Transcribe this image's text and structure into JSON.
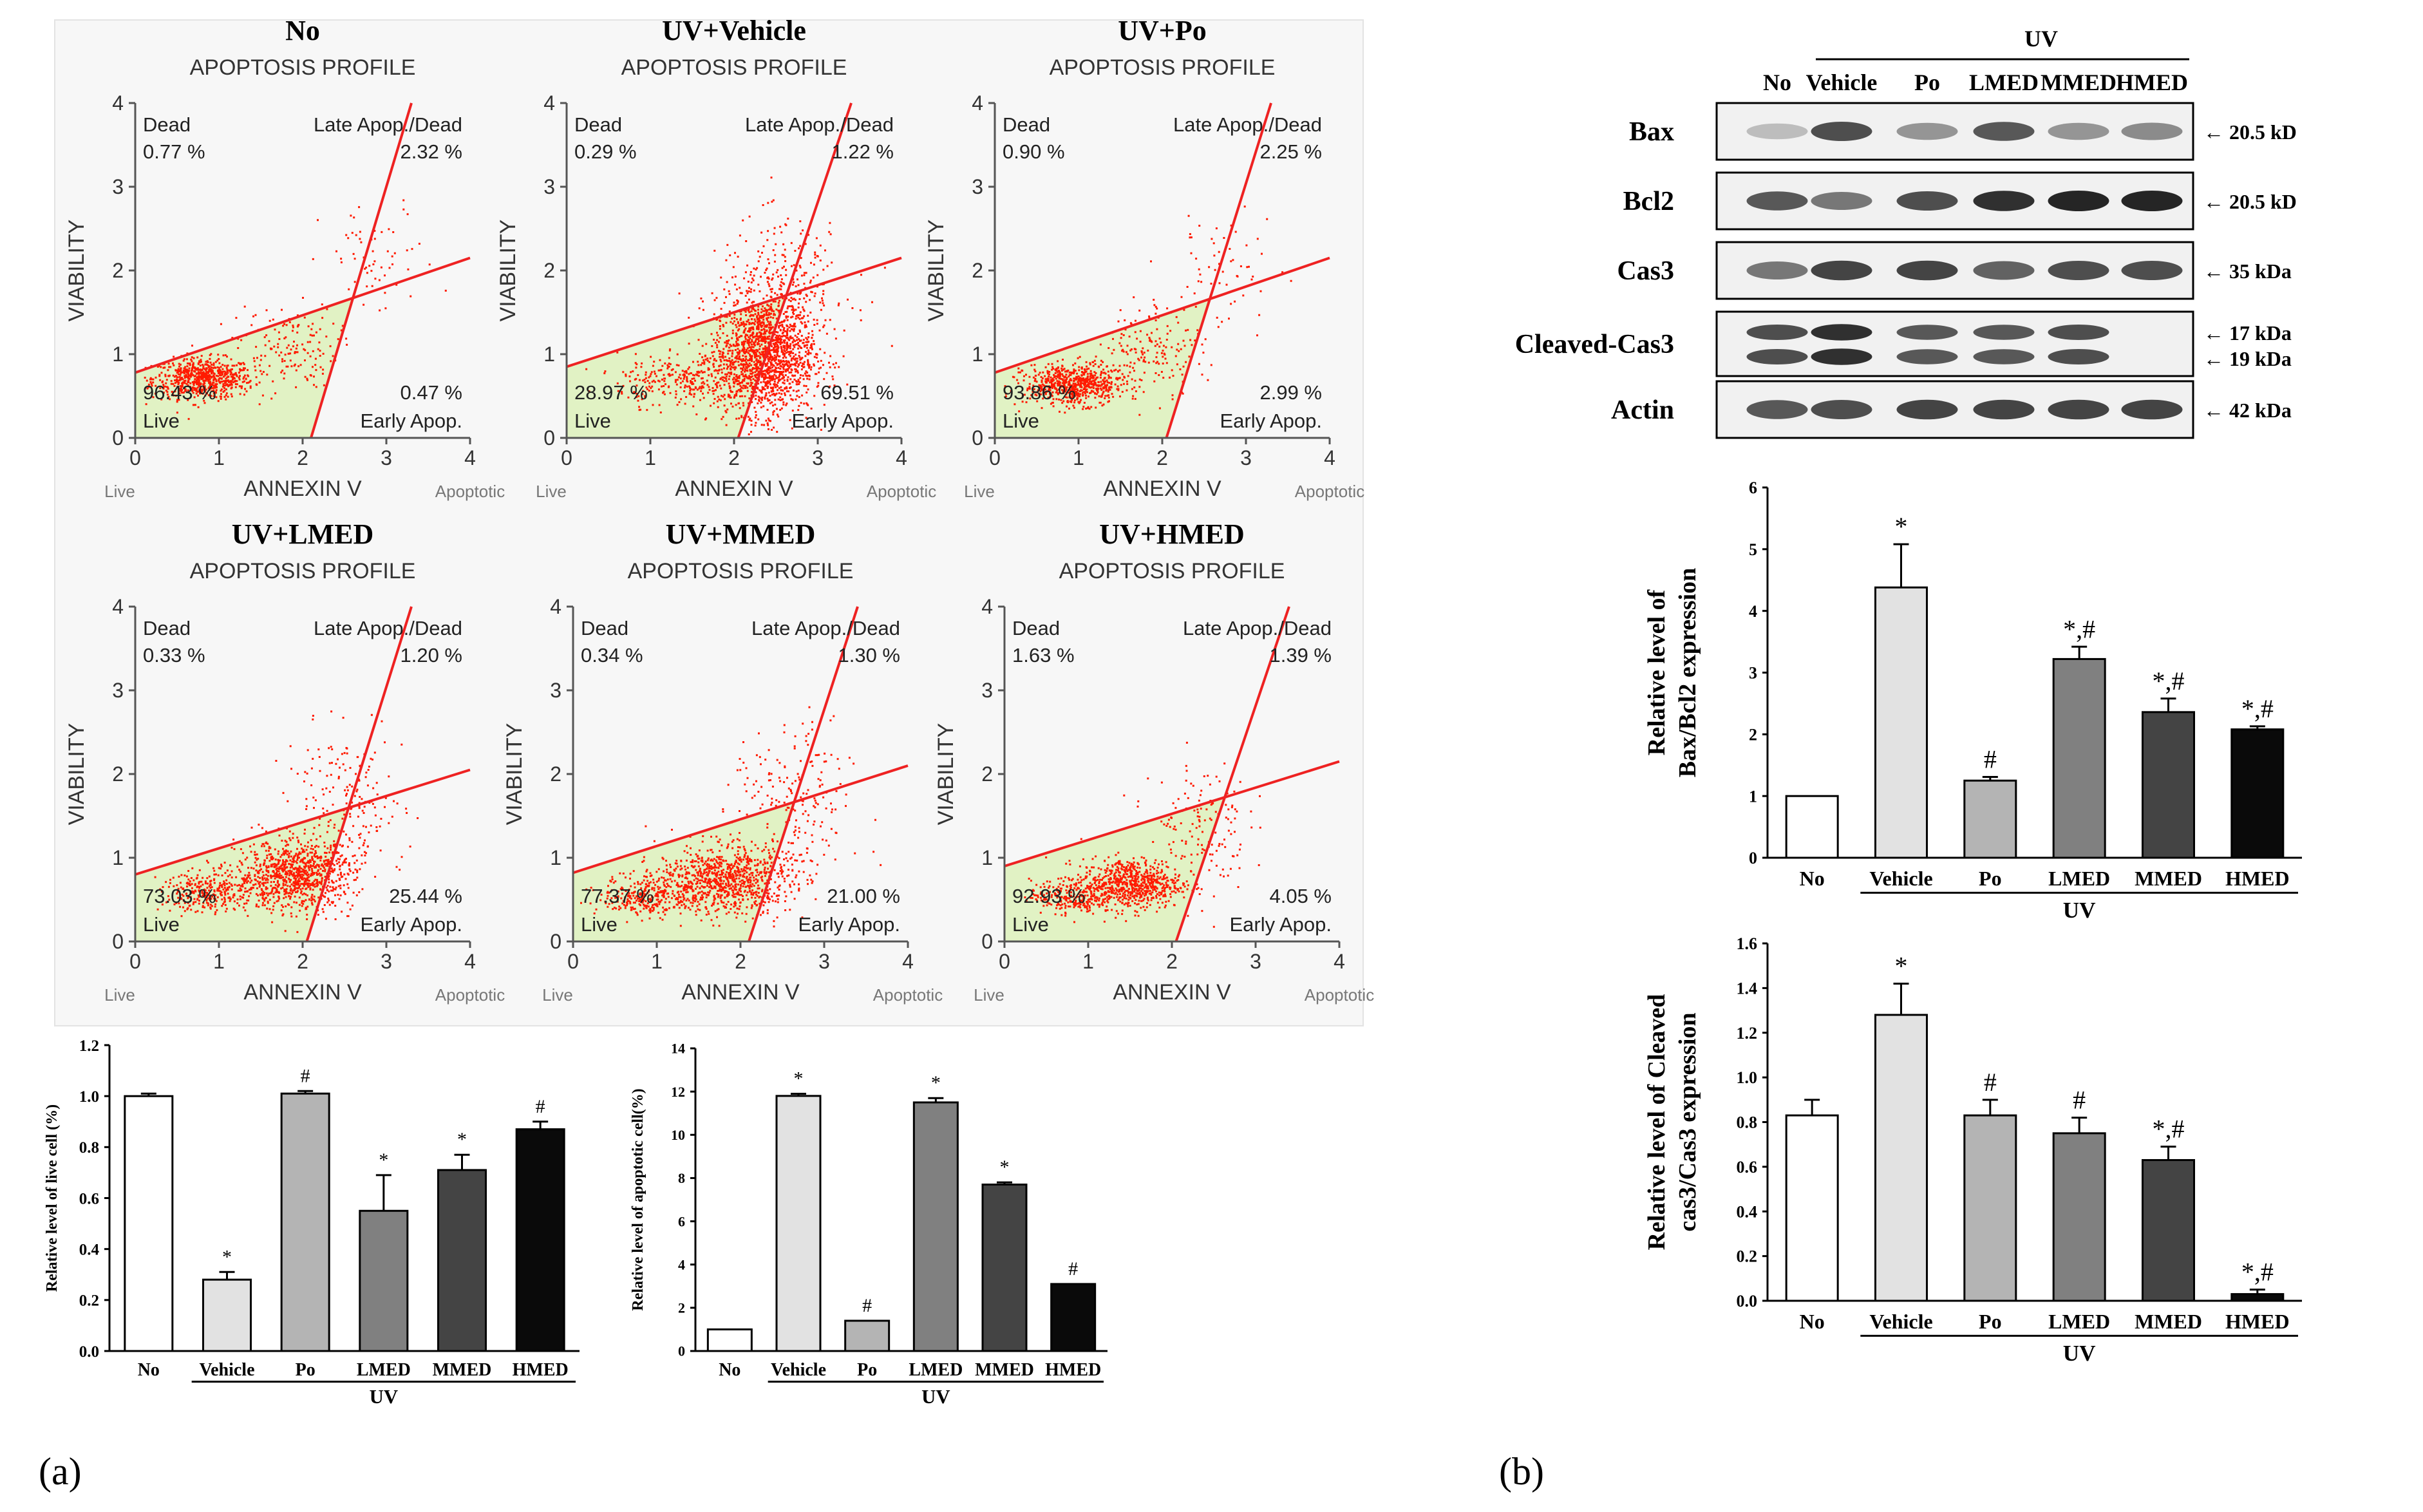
{
  "panel_labels": {
    "a": "(a)",
    "b": "(b)"
  },
  "flow": {
    "subtitle": "APOPTOSIS PROFILE",
    "x_label": "ANNEXIN V",
    "y_label": "VIABILITY",
    "live_tag": "Live",
    "apoptotic_tag": "Apoptotic",
    "q_dead": "Dead",
    "q_late": "Late Apop./Dead",
    "q_live": "Live",
    "q_early": "Early Apop.",
    "ticks": [
      "0",
      "1",
      "2",
      "3",
      "4"
    ],
    "colors": {
      "dots": "#ff1a00",
      "live_fill": "#e1f2c4",
      "gate": "#ee2222"
    },
    "plots": [
      {
        "title": "No",
        "dead": "0.77 %",
        "late": "2.32 %",
        "live": "96.43 %",
        "early": "0.47 %"
      },
      {
        "title": "UV+Vehicle",
        "dead": "0.29 %",
        "late": "1.22 %",
        "live": "28.97 %",
        "early": "69.51 %"
      },
      {
        "title": "UV+Po",
        "dead": "0.90 %",
        "late": "2.25 %",
        "live": "93.86 %",
        "early": "2.99 %"
      },
      {
        "title": "UV+LMED",
        "dead": "0.33 %",
        "late": "1.20 %",
        "live": "73.03 %",
        "early": "25.44 %"
      },
      {
        "title": "UV+MMED",
        "dead": "0.34 %",
        "late": "1.30 %",
        "live": "77.37 %",
        "early": "21.00 %"
      },
      {
        "title": "UV+HMED",
        "dead": "1.63 %",
        "late": "1.39 %",
        "live": "92.93 %",
        "early": "4.05 %"
      }
    ]
  },
  "western": {
    "uv_label": "UV",
    "lanes": [
      "No",
      "Vehicle",
      "Po",
      "LMED",
      "MMED",
      "HMED"
    ],
    "rows": [
      {
        "name": "Bax",
        "size": "20.5 kD"
      },
      {
        "name": "Bcl2",
        "size": "20.5 kD"
      },
      {
        "name": "Cas3",
        "size": "35 kDa"
      },
      {
        "name": "Cleaved-Cas3",
        "size": "17 kDa",
        "size2": "19 kDa"
      },
      {
        "name": "Actin",
        "size": "42 kDa"
      }
    ]
  },
  "chart_data": [
    {
      "id": "live",
      "type": "bar",
      "title": "",
      "ylabel": "Relative  level of live cell (%)",
      "xlabel": "UV",
      "categories": [
        "No",
        "Vehicle",
        "Po",
        "LMED",
        "MMED",
        "HMED"
      ],
      "values": [
        1.0,
        0.28,
        1.01,
        0.55,
        0.71,
        0.87
      ],
      "errors": [
        0.01,
        0.03,
        0.01,
        0.14,
        0.06,
        0.03
      ],
      "marks": [
        "",
        "*",
        "#",
        "*",
        "*",
        "#"
      ],
      "yticks": [
        "0.0",
        "0.2",
        "0.4",
        "0.6",
        "0.8",
        "1.0",
        "1.2"
      ],
      "ylim": [
        0,
        1.2
      ]
    },
    {
      "id": "apop",
      "type": "bar",
      "title": "",
      "ylabel": "Relative  level of apoptotic  cell(%)",
      "xlabel": "UV",
      "categories": [
        "No",
        "Vehicle",
        "Po",
        "LMED",
        "MMED",
        "HMED"
      ],
      "values": [
        1.0,
        11.8,
        1.4,
        11.5,
        7.7,
        3.1
      ],
      "errors": [
        0,
        0.1,
        0,
        0.2,
        0.1,
        0
      ],
      "marks": [
        "",
        "*",
        "#",
        "*",
        "*",
        "#"
      ],
      "yticks": [
        "0",
        "2",
        "4",
        "6",
        "8",
        "10",
        "12",
        "14"
      ],
      "ylim": [
        0,
        14
      ]
    },
    {
      "id": "baxbcl2",
      "type": "bar",
      "title": "",
      "ylabel": "Relative level of",
      "ylabel2": "Bax/Bcl2 expression",
      "xlabel": "UV",
      "categories": [
        "No",
        "Vehicle",
        "Po",
        "LMED",
        "MMED",
        "HMED"
      ],
      "values": [
        1.0,
        4.38,
        1.25,
        3.22,
        2.36,
        2.08
      ],
      "errors": [
        0,
        0.7,
        0.06,
        0.2,
        0.22,
        0.05
      ],
      "marks": [
        "",
        "*",
        "#",
        "*,#",
        "*,#",
        "*,#"
      ],
      "yticks": [
        "0",
        "1",
        "2",
        "3",
        "4",
        "5",
        "6"
      ],
      "ylim": [
        0,
        6
      ]
    },
    {
      "id": "cas3",
      "type": "bar",
      "title": "",
      "ylabel": "Relative level of  Cleaved",
      "ylabel2": "cas3/Cas3 expression",
      "xlabel": "UV",
      "categories": [
        "No",
        "Vehicle",
        "Po",
        "LMED",
        "MMED",
        "HMED"
      ],
      "values": [
        0.83,
        1.28,
        0.83,
        0.75,
        0.63,
        0.03
      ],
      "errors": [
        0.07,
        0.14,
        0.07,
        0.07,
        0.06,
        0.02
      ],
      "marks": [
        "",
        "*",
        "#",
        "#",
        "*,#",
        "*,#"
      ],
      "yticks": [
        "0.0",
        "0.2",
        "0.4",
        "0.6",
        "0.8",
        "1.0",
        "1.2",
        "1.4",
        "1.6"
      ],
      "ylim": [
        0,
        1.6
      ]
    }
  ],
  "bar_colors": [
    "#ffffff",
    "#e2e2e2",
    "#b4b4b4",
    "#808080",
    "#444444",
    "#0a0a0a"
  ]
}
